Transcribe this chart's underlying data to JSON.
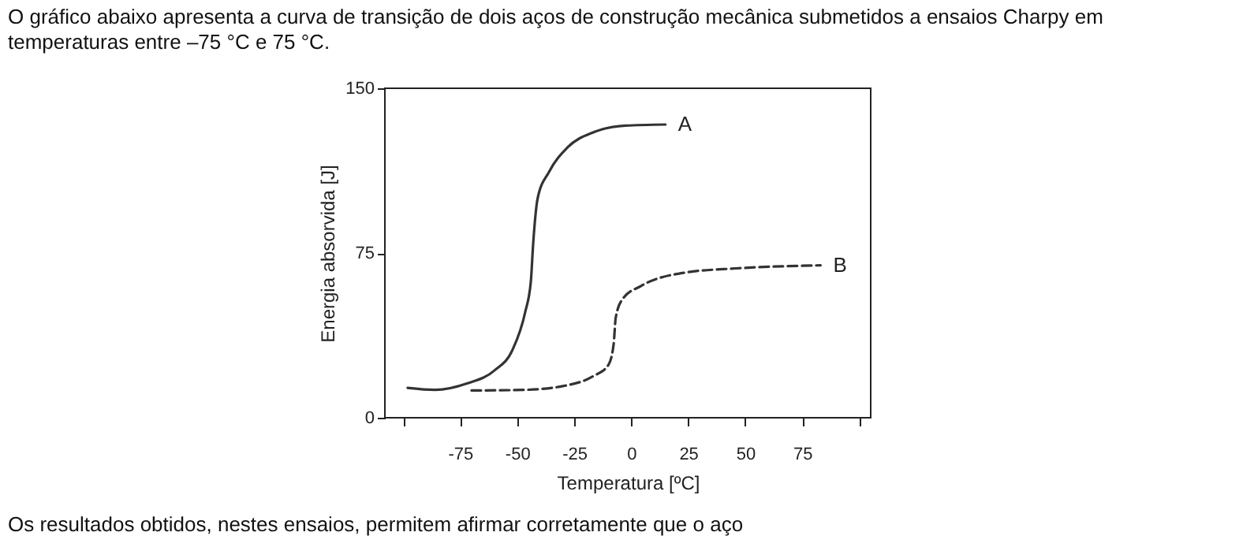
{
  "chart_data": {
    "type": "line",
    "title": "O gráfico abaixo apresenta a curva de transição de dois aços de construção mecânica submetidos a ensaios Charpy em temperaturas entre –75 °C e 75 °C.",
    "xlabel": "Temperatura [ºC]",
    "ylabel": "Energia absorvida [J]",
    "xlim": [
      -108,
      105
    ],
    "ylim": [
      0,
      150
    ],
    "xticks": [
      {
        "value": -100,
        "label": null
      },
      -75,
      -50,
      -25,
      0,
      25,
      50,
      75,
      {
        "value": 100,
        "label": null
      }
    ],
    "yticks": [
      0,
      75,
      150
    ],
    "grid": false,
    "legend": false,
    "marker": "none",
    "series": [
      {
        "name": "A",
        "color": "#333333",
        "line_style": "solid",
        "x": [
          -98,
          -86,
          -72,
          -60,
          -52,
          -46.5,
          -44,
          -43,
          -41,
          -36,
          -28,
          -16.5,
          -2.6,
          15
        ],
        "values": [
          13.6,
          12.7,
          15.6,
          21.5,
          31,
          48,
          62,
          79,
          100,
          112,
          123,
          130,
          133,
          133.5
        ]
      },
      {
        "name": "B",
        "color": "#333333",
        "line_style": "dashed",
        "x": [
          -70,
          -46.5,
          -30,
          -16.5,
          -10,
          -7.7,
          -6.8,
          -3.8,
          4.3,
          23,
          46,
          83
        ],
        "values": [
          12.4,
          12.7,
          14.4,
          19,
          24,
          33.5,
          45.5,
          54,
          60,
          66,
          68,
          69.4
        ]
      }
    ],
    "annotations": [
      "Os resultados obtidos, nestes ensaios, permitem afirmar corretamente que o aço"
    ]
  }
}
